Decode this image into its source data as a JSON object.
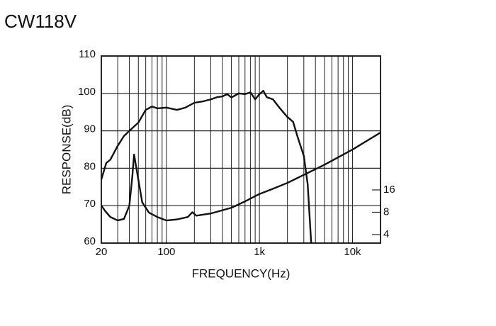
{
  "chart_data": {
    "type": "line",
    "title": "CW118V",
    "xlabel": "FREQUENCY(Hz)",
    "ylabel": "RESPONSE(dB)",
    "xscale": "log",
    "xlim": [
      20,
      20000
    ],
    "xticks": [
      20,
      100,
      {
        "value": 1000,
        "label": "1k"
      },
      {
        "value": 10000,
        "label": "10k"
      }
    ],
    "xgrid": [
      30,
      40,
      50,
      60,
      70,
      80,
      90,
      100,
      200,
      300,
      400,
      500,
      600,
      700,
      800,
      900,
      1000,
      2000,
      3000,
      4000,
      5000,
      6000,
      7000,
      8000,
      9000,
      10000
    ],
    "ylim": [
      60,
      110
    ],
    "yticks": [
      60,
      70,
      80,
      90,
      100,
      110
    ],
    "y2scale": "log",
    "y2lim": [
      3.07,
      1024
    ],
    "y2ticks": [
      4,
      8,
      16
    ],
    "grid": true,
    "series": [
      {
        "color": "#111111",
        "x": [
          20,
          22.6,
          25,
          30,
          35,
          40,
          50,
          60,
          70,
          80,
          100,
          130,
          160,
          200,
          250,
          300,
          350,
          400,
          450,
          500,
          600,
          700,
          800,
          900,
          1000,
          1100,
          1200,
          1400,
          1600,
          1800,
          2000,
          2300,
          2600,
          3000,
          3300,
          3600
        ],
        "values": [
          77.0,
          81.4,
          82.3,
          86,
          88.6,
          90,
          92.2,
          95.6,
          96.5,
          96,
          96.2,
          95.6,
          96.2,
          97.5,
          97.9,
          98.4,
          99,
          99.2,
          99.8,
          98.9,
          100,
          99.8,
          100.3,
          98.4,
          99.8,
          100.7,
          99,
          98.4,
          96.5,
          95,
          93.7,
          92.4,
          88,
          83.3,
          75.7,
          60
        ]
      },
      {
        "color": "#111111",
        "axis": "y2",
        "x": [
          20,
          22,
          25,
          30,
          35,
          40,
          43,
          45,
          48,
          55,
          65,
          80,
          100,
          130,
          170,
          190,
          210,
          300,
          500,
          700,
          1000,
          1300,
          2000,
          5000,
          10000,
          20000
        ],
        "values": [
          9.85,
          8.3,
          6.9,
          6.2,
          6.5,
          9.8,
          23.8,
          48,
          29.6,
          10.9,
          7.9,
          6.9,
          6.2,
          6.4,
          6.9,
          8,
          7.2,
          7.7,
          9.2,
          11.2,
          14.1,
          16,
          19.9,
          35,
          56,
          95
        ]
      }
    ]
  }
}
